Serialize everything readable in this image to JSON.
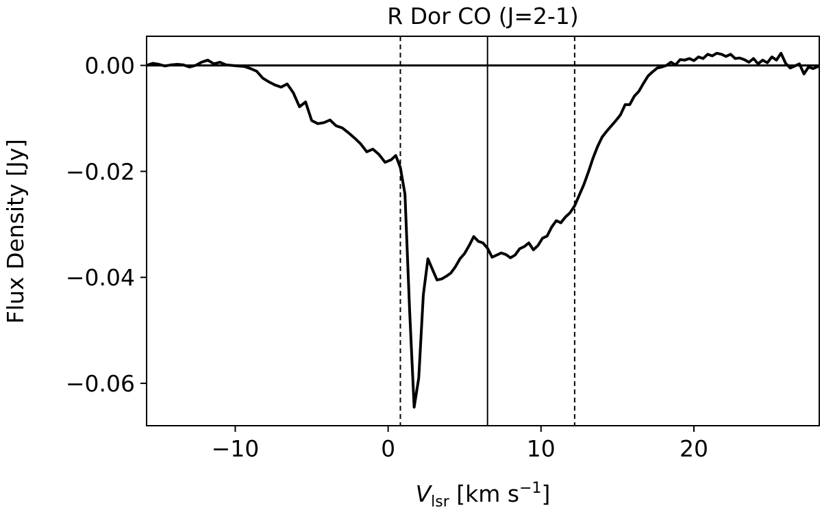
{
  "chart_data": {
    "type": "line",
    "title": "R Dor CO (J=2-1)",
    "xlabel": {
      "main": "V",
      "sub": "lsr",
      "unit_prefix": " [km s",
      "unit_sup": "−1",
      "unit_suffix": "]"
    },
    "ylabel": "Flux Density [Jy]",
    "xlim": [
      -15.8,
      28.2
    ],
    "ylim": [
      -0.068,
      0.0055
    ],
    "xticks": [
      -10,
      0,
      10,
      20
    ],
    "xtick_labels": [
      "−10",
      "0",
      "10",
      "20"
    ],
    "yticks": [
      0.0,
      -0.02,
      -0.04,
      -0.06
    ],
    "ytick_labels": [
      "0.00",
      "−0.02",
      "−0.04",
      "−0.06"
    ],
    "grid": false,
    "reference_lines": {
      "horizontal_solid": 0.0,
      "vertical_solid": 6.5,
      "vertical_dashed": [
        0.8,
        12.2
      ]
    },
    "series": [
      {
        "color": "#000000",
        "x": [
          -15.8,
          -15.4,
          -15.0,
          -14.6,
          -14.2,
          -13.8,
          -13.4,
          -13.0,
          -12.6,
          -12.2,
          -11.8,
          -11.4,
          -11.0,
          -10.6,
          -10.2,
          -9.8,
          -9.4,
          -9.0,
          -8.6,
          -8.2,
          -7.8,
          -7.4,
          -7.0,
          -6.6,
          -6.2,
          -5.8,
          -5.4,
          -5.0,
          -4.6,
          -4.2,
          -3.8,
          -3.4,
          -3.0,
          -2.6,
          -2.2,
          -1.8,
          -1.4,
          -1.0,
          -0.6,
          -0.2,
          0.2,
          0.5,
          0.8,
          1.1,
          1.4,
          1.7,
          2.0,
          2.3,
          2.6,
          2.9,
          3.2,
          3.5,
          3.8,
          4.1,
          4.4,
          4.7,
          5.0,
          5.3,
          5.6,
          5.9,
          6.2,
          6.5,
          6.8,
          7.1,
          7.4,
          7.7,
          8.0,
          8.3,
          8.6,
          8.9,
          9.2,
          9.5,
          9.8,
          10.1,
          10.4,
          10.7,
          11.0,
          11.3,
          11.6,
          11.9,
          12.2,
          12.5,
          12.8,
          13.1,
          13.4,
          13.7,
          14.0,
          14.3,
          14.6,
          14.9,
          15.2,
          15.5,
          15.8,
          16.1,
          16.4,
          16.7,
          17.0,
          17.3,
          17.6,
          17.9,
          18.2,
          18.5,
          18.8,
          19.1,
          19.4,
          19.7,
          20.0,
          20.3,
          20.6,
          20.9,
          21.2,
          21.5,
          21.8,
          22.1,
          22.4,
          22.7,
          23.0,
          23.3,
          23.6,
          23.9,
          24.2,
          24.5,
          24.8,
          25.1,
          25.4,
          25.7,
          26.0,
          26.3,
          26.6,
          26.9,
          27.2,
          27.5,
          27.8,
          28.2
        ],
        "y": [
          0.0,
          0.0004,
          0.0002,
          -0.0001,
          0.0001,
          0.0002,
          0.0001,
          -0.0003,
          0.0,
          0.0006,
          0.001,
          0.0003,
          0.0006,
          0.0001,
          0.0,
          -0.0001,
          -0.0002,
          -0.0006,
          -0.0011,
          -0.0024,
          -0.0031,
          -0.0037,
          -0.0041,
          -0.0035,
          -0.0052,
          -0.0078,
          -0.0069,
          -0.0104,
          -0.011,
          -0.0108,
          -0.0103,
          -0.0114,
          -0.0118,
          -0.0127,
          -0.0137,
          -0.0148,
          -0.0163,
          -0.0158,
          -0.0168,
          -0.0183,
          -0.0178,
          -0.017,
          -0.0193,
          -0.0243,
          -0.046,
          -0.0645,
          -0.059,
          -0.0433,
          -0.0365,
          -0.0385,
          -0.0405,
          -0.0403,
          -0.0398,
          -0.0392,
          -0.038,
          -0.0365,
          -0.0355,
          -0.034,
          -0.0323,
          -0.0332,
          -0.0335,
          -0.0345,
          -0.0362,
          -0.0358,
          -0.0354,
          -0.0357,
          -0.0363,
          -0.0358,
          -0.0346,
          -0.0342,
          -0.0335,
          -0.0348,
          -0.034,
          -0.0326,
          -0.0322,
          -0.0305,
          -0.0293,
          -0.0297,
          -0.0286,
          -0.0278,
          -0.0265,
          -0.0245,
          -0.0225,
          -0.0201,
          -0.0175,
          -0.0153,
          -0.0135,
          -0.0124,
          -0.0114,
          -0.0104,
          -0.0093,
          -0.0074,
          -0.0074,
          -0.0058,
          -0.0049,
          -0.0034,
          -0.002,
          -0.0012,
          -0.0005,
          -0.0003,
          0.0,
          0.0006,
          0.0001,
          0.0011,
          0.001,
          0.0013,
          0.0009,
          0.0016,
          0.0013,
          0.0021,
          0.0018,
          0.0023,
          0.0021,
          0.0017,
          0.0021,
          0.0013,
          0.0014,
          0.0011,
          0.0006,
          0.0013,
          0.0003,
          0.001,
          0.0005,
          0.0016,
          0.001,
          0.0023,
          0.0004,
          -0.0005,
          -0.0001,
          0.0003,
          -0.0016,
          -0.0003,
          -0.0006,
          -0.0001
        ]
      }
    ]
  }
}
